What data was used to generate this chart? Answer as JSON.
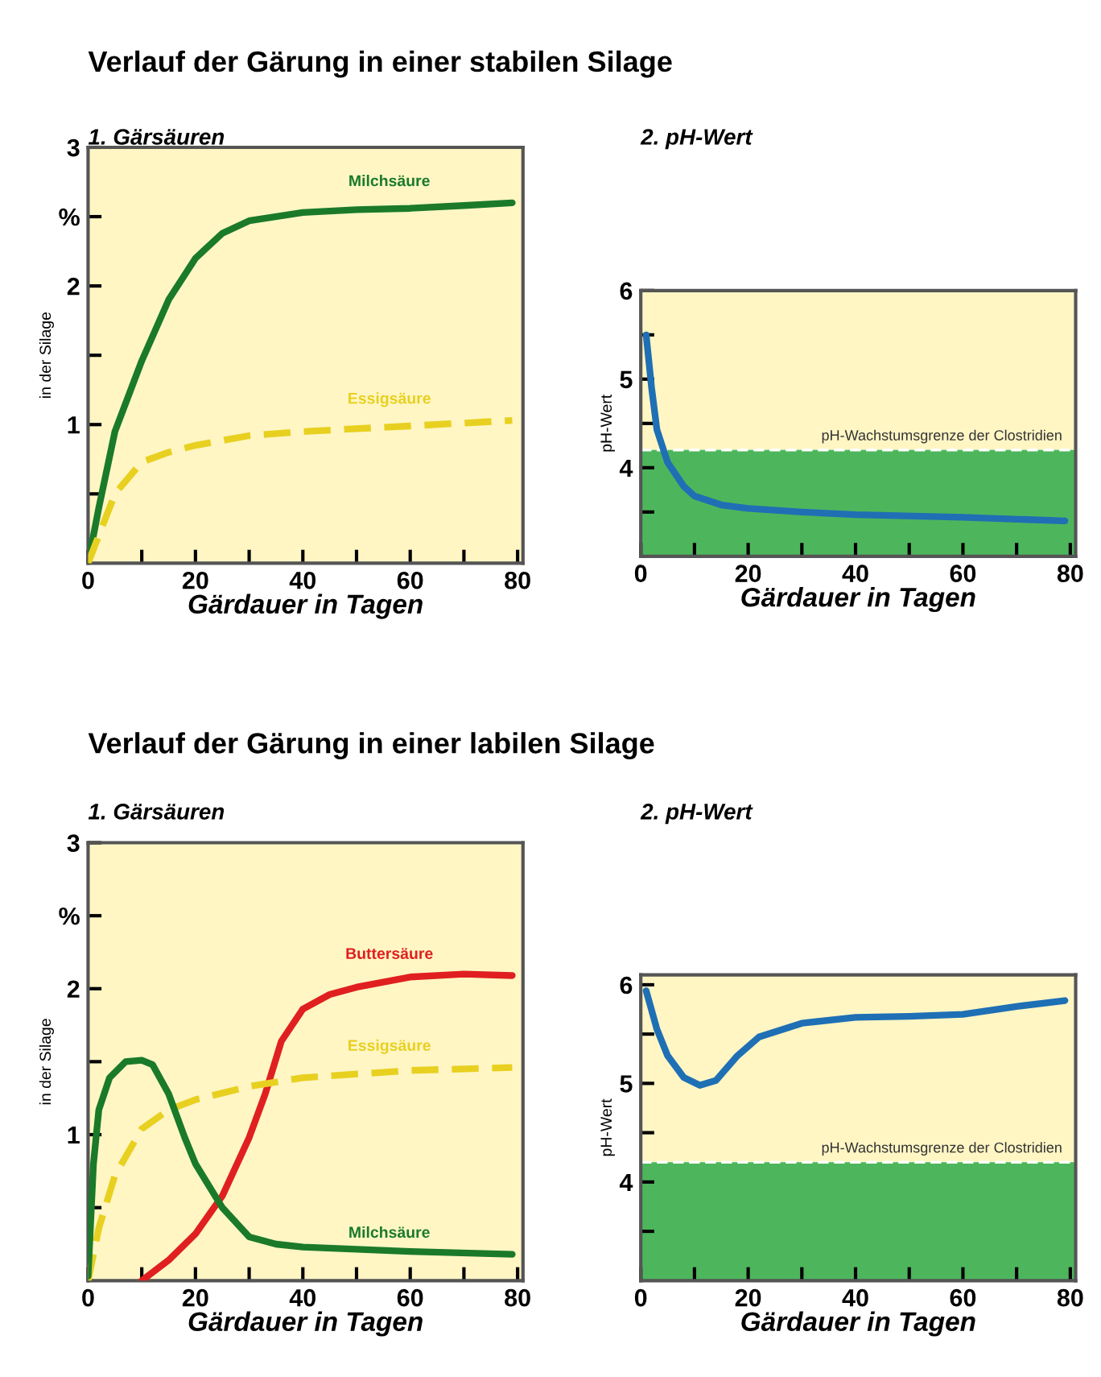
{
  "chart_data": [
    {
      "type": "line",
      "title": "1. Gärsäuren",
      "xlabel": "Gärdauer in Tagen",
      "ylabel": "in der Silage",
      "annotations": [
        "Verlauf der Gärung in einer stabilen Silage"
      ],
      "xlim": [
        0,
        81
      ],
      "xticks": [
        0,
        {
          "value": 10,
          "label": null
        },
        20,
        {
          "value": 30,
          "label": null
        },
        40,
        {
          "value": 50,
          "label": null
        },
        60,
        {
          "value": 70,
          "label": null
        },
        80
      ],
      "ylim": [
        0,
        3
      ],
      "yticks": [
        {
          "value": 0.5,
          "label": null
        },
        1,
        {
          "value": 1.5,
          "label": null
        },
        2,
        {
          "value": 2.5,
          "label": "%"
        },
        3
      ],
      "series": [
        {
          "name": "Milchsäure",
          "color": "#1a7a2a",
          "line_style": "solid",
          "x": [
            0,
            2,
            5,
            10,
            15,
            20,
            25,
            30,
            40,
            50,
            60,
            70,
            79
          ],
          "values": [
            0,
            0.4,
            0.95,
            1.46,
            1.9,
            2.2,
            2.38,
            2.47,
            2.53,
            2.55,
            2.56,
            2.58,
            2.6
          ]
        },
        {
          "name": "Essigsäure",
          "color": "#e8d020",
          "line_style": "dashed",
          "x": [
            0,
            3,
            5,
            10,
            15,
            20,
            30,
            40,
            60,
            79
          ],
          "values": [
            0,
            0.3,
            0.5,
            0.73,
            0.8,
            0.85,
            0.92,
            0.95,
            0.99,
            1.03
          ]
        }
      ]
    },
    {
      "type": "line",
      "title": "2. pH-Wert",
      "xlabel": "Gärdauer in Tagen",
      "ylabel": "pH-Wert",
      "xlim": [
        0,
        81
      ],
      "xticks": [
        0,
        {
          "value": 10,
          "label": null
        },
        20,
        {
          "value": 30,
          "label": null
        },
        40,
        {
          "value": 50,
          "label": null
        },
        60,
        {
          "value": 70,
          "label": null
        },
        80
      ],
      "ylim": [
        3,
        6
      ],
      "yticks": [
        {
          "value": 3.5,
          "label": null
        },
        4,
        {
          "value": 4.5,
          "label": null
        },
        5,
        {
          "value": 5.5,
          "label": null
        },
        6
      ],
      "bands": [
        {
          "axis": "y",
          "from": 3,
          "to": 4.2,
          "color": "#2eaa4a"
        }
      ],
      "ref_lines": [
        {
          "axis": "y",
          "value": 4.2,
          "label": "pH-Wachstumsgrenze der Clostridien",
          "color": "#ffffff",
          "line_style": "dashed"
        }
      ],
      "series": [
        {
          "color": "#1f6fb5",
          "line_style": "solid",
          "x": [
            1,
            2,
            3,
            5,
            8,
            10,
            15,
            20,
            30,
            40,
            60,
            79
          ],
          "values": [
            5.5,
            4.91,
            4.43,
            4.06,
            3.79,
            3.68,
            3.58,
            3.54,
            3.5,
            3.47,
            3.44,
            3.4
          ]
        }
      ]
    },
    {
      "type": "line",
      "title": "1. Gärsäuren",
      "xlabel": "Gärdauer in Tagen",
      "ylabel": "in der Silage",
      "annotations": [
        "Verlauf der Gärung in einer labilen Silage"
      ],
      "xlim": [
        0,
        81
      ],
      "xticks": [
        0,
        {
          "value": 10,
          "label": null
        },
        20,
        {
          "value": 30,
          "label": null
        },
        40,
        {
          "value": 50,
          "label": null
        },
        60,
        {
          "value": 70,
          "label": null
        },
        80
      ],
      "ylim": [
        0,
        3
      ],
      "yticks": [
        {
          "value": 0.5,
          "label": null
        },
        1,
        {
          "value": 1.5,
          "label": null
        },
        2,
        {
          "value": 2.5,
          "label": "%"
        },
        3
      ],
      "series": [
        {
          "name": "Buttersäure",
          "color": "#e02020",
          "line_style": "solid",
          "x": [
            10,
            15,
            20,
            25,
            30,
            33,
            36,
            40,
            45,
            50,
            60,
            70,
            79
          ],
          "values": [
            0,
            0.14,
            0.32,
            0.58,
            0.98,
            1.28,
            1.64,
            1.86,
            1.96,
            2.01,
            2.08,
            2.1,
            2.09
          ]
        },
        {
          "name": "Essigsäure",
          "color": "#e8d020",
          "line_style": "dashed",
          "x": [
            0,
            2,
            5,
            10,
            15,
            20,
            30,
            40,
            60,
            79
          ],
          "values": [
            0,
            0.36,
            0.72,
            1.04,
            1.17,
            1.24,
            1.33,
            1.39,
            1.44,
            1.46
          ]
        },
        {
          "name": "Milchsäure",
          "color": "#1a7a2a",
          "line_style": "solid",
          "x": [
            0,
            1,
            2,
            4,
            7,
            10,
            12,
            15,
            18,
            20,
            25,
            30,
            35,
            40,
            60,
            79
          ],
          "values": [
            0.03,
            0.8,
            1.17,
            1.39,
            1.5,
            1.51,
            1.48,
            1.28,
            0.98,
            0.8,
            0.5,
            0.3,
            0.25,
            0.23,
            0.2,
            0.18
          ]
        }
      ]
    },
    {
      "type": "line",
      "title": "2. pH-Wert",
      "xlabel": "Gärdauer in Tagen",
      "ylabel": "pH-Wert",
      "xlim": [
        0,
        81
      ],
      "xticks": [
        0,
        {
          "value": 10,
          "label": null
        },
        20,
        {
          "value": 30,
          "label": null
        },
        40,
        {
          "value": 50,
          "label": null
        },
        60,
        {
          "value": 70,
          "label": null
        },
        80
      ],
      "ylim": [
        3,
        6.1
      ],
      "yticks": [
        {
          "value": 3.5,
          "label": null
        },
        4,
        {
          "value": 4.5,
          "label": null
        },
        5,
        {
          "value": 5.5,
          "label": null
        },
        6
      ],
      "bands": [
        {
          "axis": "y",
          "from": 3,
          "to": 4.2,
          "color": "#2eaa4a"
        }
      ],
      "ref_lines": [
        {
          "axis": "y",
          "value": 4.2,
          "label": "pH-Wachstumsgrenze der Clostridien",
          "color": "#ffffff",
          "line_style": "dashed"
        }
      ],
      "series": [
        {
          "color": "#1f6fb5",
          "line_style": "solid",
          "x": [
            1,
            3,
            5,
            8,
            11,
            14,
            18,
            22,
            30,
            40,
            50,
            60,
            70,
            79
          ],
          "values": [
            5.94,
            5.55,
            5.28,
            5.06,
            4.98,
            5.03,
            5.28,
            5.47,
            5.61,
            5.67,
            5.68,
            5.7,
            5.78,
            5.84
          ]
        }
      ]
    }
  ]
}
